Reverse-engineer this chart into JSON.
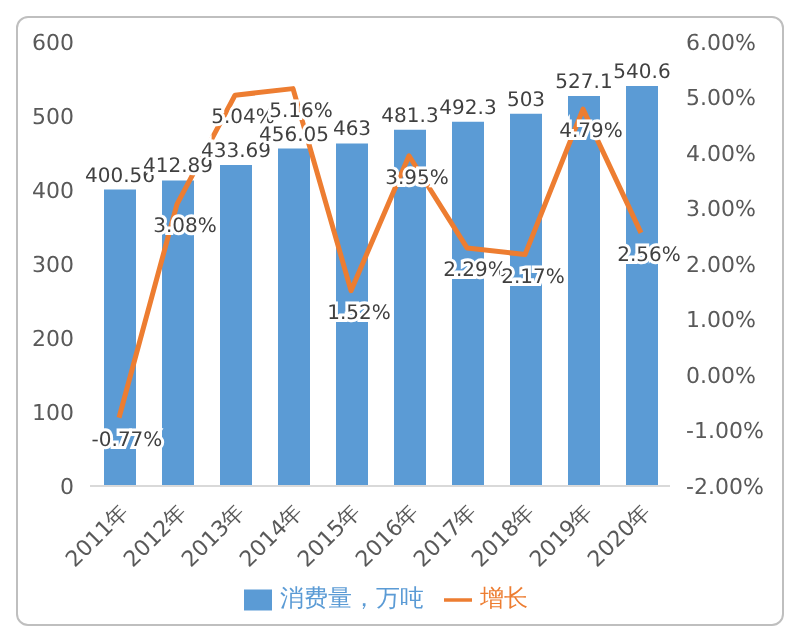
{
  "chart_data": {
    "type": "bar",
    "categories": [
      "2011年",
      "2012年",
      "2013年",
      "2014年",
      "2015年",
      "2016年",
      "2017年",
      "2018年",
      "2019年",
      "2020年"
    ],
    "series": [
      {
        "name": "消费量，万吨",
        "color": "#5b9bd5",
        "values": [
          400.56,
          412.89,
          433.69,
          456.05,
          463,
          481.3,
          492.3,
          503,
          527.1,
          540.6
        ],
        "value_labels": [
          "400.56",
          "412.89",
          "433.69",
          "456.05",
          "463",
          "481.3",
          "492.3",
          "503",
          "527.1",
          "540.6"
        ]
      },
      {
        "name": "增长",
        "type": "line",
        "axis": "y2",
        "color": "#ed7d31",
        "values": [
          -0.77,
          3.08,
          5.04,
          5.16,
          1.52,
          3.95,
          2.29,
          2.17,
          4.79,
          2.56
        ],
        "value_labels": [
          "-0.77%",
          "3.08%",
          "5.04%",
          "5.16%",
          "1.52%",
          "3.95%",
          "2.29%",
          "2.17%",
          "4.79%",
          "2.56%"
        ]
      }
    ],
    "ylim": [
      0,
      600
    ],
    "yticks": [
      0,
      100,
      200,
      300,
      400,
      500,
      600
    ],
    "y2lim": [
      -2,
      6
    ],
    "y2ticks": [
      {
        "value": -2,
        "label": "-2.00%"
      },
      {
        "value": -1,
        "label": "-1.00%"
      },
      {
        "value": 0,
        "label": "0.00%"
      },
      {
        "value": 1,
        "label": "1.00%"
      },
      {
        "value": 2,
        "label": "2.00%"
      },
      {
        "value": 3,
        "label": "3.00%"
      },
      {
        "value": 4,
        "label": "4.00%"
      },
      {
        "value": 5,
        "label": "5.00%"
      },
      {
        "value": 6,
        "label": "6.00%"
      }
    ],
    "legend": "bottom",
    "grid": false,
    "marker": "none",
    "line_style": "solid"
  }
}
